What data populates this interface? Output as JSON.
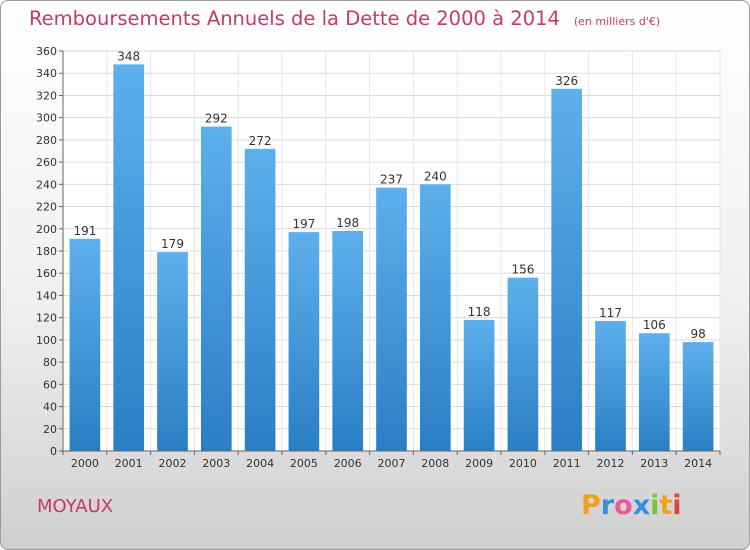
{
  "header": {
    "title": "Remboursements Annuels de la Dette de 2000 à 2014",
    "unit": "(en milliers d'€)"
  },
  "footer": {
    "commune": "MOYAUX",
    "logo_letters": [
      "P",
      "r",
      "o",
      "x",
      "i",
      "t",
      "i"
    ],
    "logo_colors": [
      "#f0a020",
      "#3a8fd8",
      "#e85a9a",
      "#3a8fd8",
      "#7cc23a",
      "#f0a020",
      "#e84040"
    ]
  },
  "colors": {
    "bar_light": "#5eb0ec",
    "bar_dark": "#2a7ec4",
    "accent": "#c7396b"
  },
  "chart_data": {
    "type": "bar",
    "categories": [
      "2000",
      "2001",
      "2002",
      "2003",
      "2004",
      "2005",
      "2006",
      "2007",
      "2008",
      "2009",
      "2010",
      "2011",
      "2012",
      "2013",
      "2014"
    ],
    "values": [
      191,
      348,
      179,
      292,
      272,
      197,
      198,
      237,
      240,
      118,
      156,
      326,
      117,
      106,
      98
    ],
    "data_labels": [
      "191",
      "348",
      "179",
      "292",
      "272",
      "197",
      "198",
      "237",
      "240",
      "118",
      "156",
      "326",
      "117",
      "106",
      "98"
    ],
    "ylim": [
      0,
      360
    ],
    "yticks": [
      0,
      20,
      40,
      60,
      80,
      100,
      120,
      140,
      160,
      180,
      200,
      220,
      240,
      260,
      280,
      300,
      320,
      340,
      360
    ],
    "ytick_labels": [
      "0",
      "20",
      "40",
      "60",
      "80",
      "100",
      "120",
      "140",
      "160",
      "180",
      "200",
      "220",
      "240",
      "260",
      "280",
      "300",
      "320",
      "340",
      "360"
    ],
    "grid": true
  }
}
